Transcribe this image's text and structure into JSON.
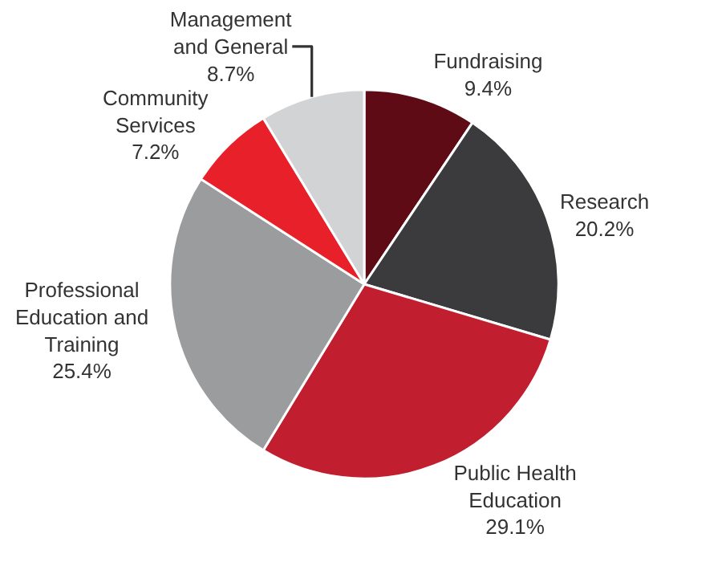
{
  "chart_data": {
    "type": "pie",
    "categories": [
      "Fundraising",
      "Research",
      "Public Health Education",
      "Professional Education and Training",
      "Community Services",
      "Management and General"
    ],
    "values": [
      9.4,
      20.2,
      29.1,
      25.4,
      7.2,
      8.7
    ],
    "value_labels": [
      "9.4%",
      "20.2%",
      "29.1%",
      "25.4%",
      "7.2%",
      "8.7%"
    ],
    "colors": [
      "#5e0b16",
      "#3b3b3d",
      "#c11f2f",
      "#9b9c9e",
      "#e8202a",
      "#d2d3d5"
    ],
    "legend": false
  }
}
